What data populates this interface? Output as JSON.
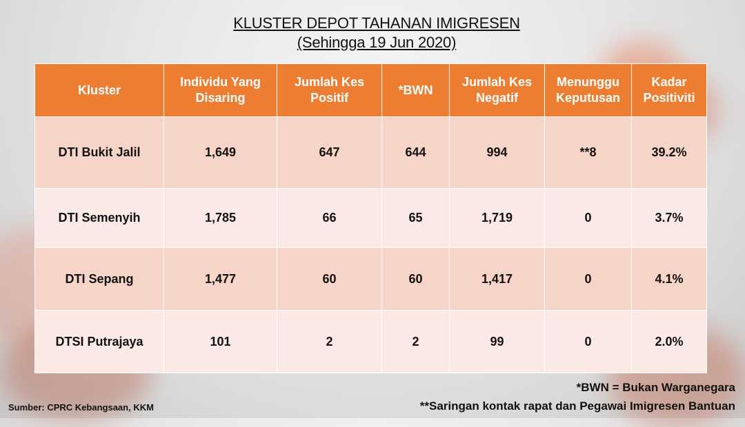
{
  "title": "KLUSTER DEPOT TAHANAN IMIGRESEN",
  "subtitle": "(Sehingga 19 Jun 2020)",
  "table": {
    "headers": [
      "Kluster",
      "Individu Yang Disaring",
      "Jumlah Kes Positif",
      "*BWN",
      "Jumlah Kes Negatif",
      "Menunggu Keputusan",
      "Kadar Positiviti"
    ],
    "rows": [
      [
        "DTI Bukit Jalil",
        "1,649",
        "647",
        "644",
        "994",
        "**8",
        "39.2%"
      ],
      [
        "DTI Semenyih",
        "1,785",
        "66",
        "65",
        "1,719",
        "0",
        "3.7%"
      ],
      [
        "DTI Sepang",
        "1,477",
        "60",
        "60",
        "1,417",
        "0",
        "4.1%"
      ],
      [
        "DTSI Putrajaya",
        "101",
        "2",
        "2",
        "99",
        "0",
        "2.0%"
      ]
    ]
  },
  "footnotes": {
    "bwn": "*BWN = Bukan Warganegara",
    "saringan": "**Saringan kontak rapat dan Pegawai Imigresen Bantuan"
  },
  "source": "Sumber: CPRC Kebangsaan, KKM",
  "colors": {
    "header_bg": "#ed7d31",
    "row_dark": "#f7d4c8",
    "row_light": "#fbe9e5"
  }
}
